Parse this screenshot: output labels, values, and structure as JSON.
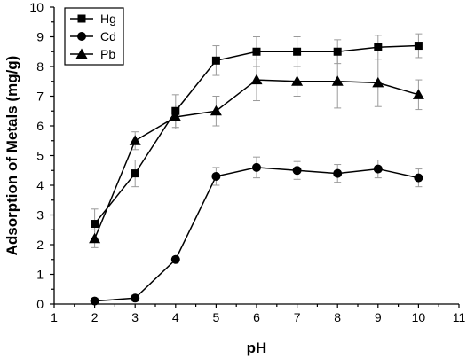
{
  "chart_data": {
    "type": "line",
    "title": "",
    "xlabel": "pH",
    "ylabel": "Adsorption of Metals (mg/g)",
    "xlim": [
      1,
      11
    ],
    "ylim": [
      0,
      10
    ],
    "x_ticks": [
      1,
      2,
      3,
      4,
      5,
      6,
      7,
      8,
      9,
      10,
      11
    ],
    "y_ticks": [
      0,
      1,
      2,
      3,
      4,
      5,
      6,
      7,
      8,
      9,
      10
    ],
    "x": [
      2,
      3,
      4,
      5,
      6,
      7,
      8,
      9,
      10
    ],
    "legend_position": "top-left",
    "grid": false,
    "series": [
      {
        "name": "Hg",
        "marker": "square",
        "values": [
          2.7,
          4.4,
          6.5,
          8.2,
          8.5,
          8.5,
          8.5,
          8.65,
          8.7
        ],
        "errors": [
          0.5,
          0.45,
          0.55,
          0.5,
          0.5,
          0.5,
          0.4,
          0.4,
          0.4
        ]
      },
      {
        "name": "Cd",
        "marker": "circle",
        "values": [
          0.1,
          0.2,
          1.5,
          4.3,
          4.6,
          4.5,
          4.4,
          4.55,
          4.25
        ],
        "errors": [
          0.1,
          0.1,
          0.1,
          0.3,
          0.35,
          0.3,
          0.3,
          0.3,
          0.3
        ]
      },
      {
        "name": "Pb",
        "marker": "triangle",
        "values": [
          2.2,
          5.5,
          6.3,
          6.5,
          7.55,
          7.5,
          7.5,
          7.45,
          7.05
        ],
        "errors": [
          0.3,
          0.3,
          0.4,
          0.5,
          0.7,
          0.5,
          0.9,
          0.8,
          0.5
        ]
      }
    ]
  }
}
